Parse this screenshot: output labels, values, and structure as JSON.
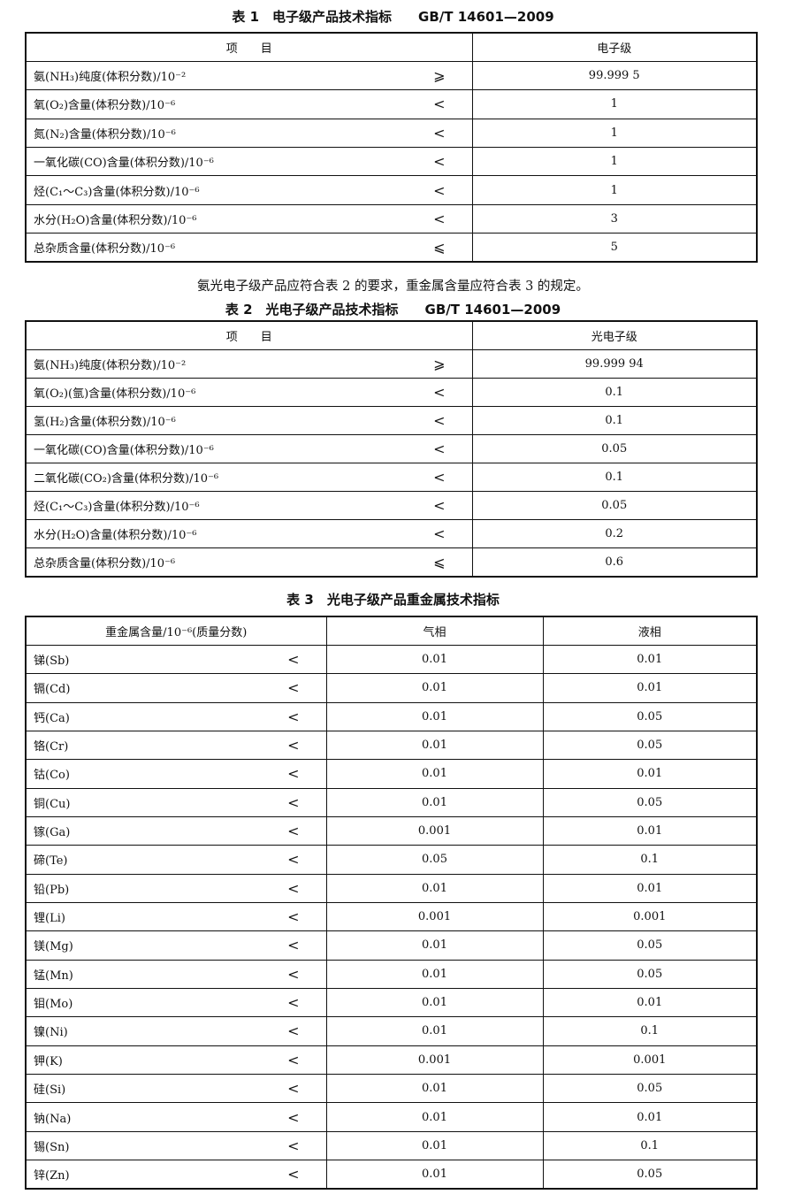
{
  "table1": {
    "caption": "表 1　电子级产品技术指标　　GB/T 14601—2009",
    "headers": [
      "项　　目",
      "电子级"
    ],
    "rows": [
      {
        "item": "氨(NH₃)纯度(体积分数)/10⁻²",
        "op": "⩾",
        "value": "99.999 5"
      },
      {
        "item": "氧(O₂)含量(体积分数)/10⁻⁶",
        "op": "<",
        "value": "1"
      },
      {
        "item": "氮(N₂)含量(体积分数)/10⁻⁶",
        "op": "<",
        "value": "1"
      },
      {
        "item": "一氧化碳(CO)含量(体积分数)/10⁻⁶",
        "op": "<",
        "value": "1"
      },
      {
        "item": "烃(C₁～C₃)含量(体积分数)/10⁻⁶",
        "op": "<",
        "value": "1"
      },
      {
        "item": "水分(H₂O)含量(体积分数)/10⁻⁶",
        "op": "<",
        "value": "3"
      },
      {
        "item": "总杂质含量(体积分数)/10⁻⁶",
        "op": "⩽",
        "value": "5"
      }
    ]
  },
  "paragraph": "氨光电子级产品应符合表 2 的要求，重金属含量应符合表 3 的规定。",
  "table2": {
    "caption": "表 2　光电子级产品技术指标　　GB/T 14601—2009",
    "headers": [
      "项　　目",
      "光电子级"
    ],
    "rows": [
      {
        "item": "氨(NH₃)纯度(体积分数)/10⁻²",
        "op": "⩾",
        "value": "99.999 94"
      },
      {
        "item": "氧(O₂)(氩)含量(体积分数)/10⁻⁶",
        "op": "<",
        "value": "0.1"
      },
      {
        "item": "氢(H₂)含量(体积分数)/10⁻⁶",
        "op": "<",
        "value": "0.1"
      },
      {
        "item": "一氧化碳(CO)含量(体积分数)/10⁻⁶",
        "op": "<",
        "value": "0.05"
      },
      {
        "item": "二氧化碳(CO₂)含量(体积分数)/10⁻⁶",
        "op": "<",
        "value": "0.1"
      },
      {
        "item": "烃(C₁～C₃)含量(体积分数)/10⁻⁶",
        "op": "<",
        "value": "0.05"
      },
      {
        "item": "水分(H₂O)含量(体积分数)/10⁻⁶",
        "op": "<",
        "value": "0.2"
      },
      {
        "item": "总杂质含量(体积分数)/10⁻⁶",
        "op": "⩽",
        "value": "0.6"
      }
    ]
  },
  "table3": {
    "caption": "表 3　光电子级产品重金属技术指标",
    "headers": [
      "重金属含量/10⁻⁶(质量分数)",
      "气相",
      "液相"
    ],
    "rows": [
      {
        "item": "锑(Sb)",
        "op": "<",
        "gas": "0.01",
        "liquid": "0.01"
      },
      {
        "item": "镉(Cd)",
        "op": "<",
        "gas": "0.01",
        "liquid": "0.01"
      },
      {
        "item": "钙(Ca)",
        "op": "<",
        "gas": "0.01",
        "liquid": "0.05"
      },
      {
        "item": "铬(Cr)",
        "op": "<",
        "gas": "0.01",
        "liquid": "0.05"
      },
      {
        "item": "钴(Co)",
        "op": "<",
        "gas": "0.01",
        "liquid": "0.01"
      },
      {
        "item": "铜(Cu)",
        "op": "<",
        "gas": "0.01",
        "liquid": "0.05"
      },
      {
        "item": "镓(Ga)",
        "op": "<",
        "gas": "0.001",
        "liquid": "0.01"
      },
      {
        "item": "碲(Te)",
        "op": "<",
        "gas": "0.05",
        "liquid": "0.1"
      },
      {
        "item": "铅(Pb)",
        "op": "<",
        "gas": "0.01",
        "liquid": "0.01"
      },
      {
        "item": "锂(Li)",
        "op": "<",
        "gas": "0.001",
        "liquid": "0.001"
      },
      {
        "item": "镁(Mg)",
        "op": "<",
        "gas": "0.01",
        "liquid": "0.05"
      },
      {
        "item": "锰(Mn)",
        "op": "<",
        "gas": "0.01",
        "liquid": "0.05"
      },
      {
        "item": "钼(Mo)",
        "op": "<",
        "gas": "0.01",
        "liquid": "0.01"
      },
      {
        "item": "镍(Ni)",
        "op": "<",
        "gas": "0.01",
        "liquid": "0.1"
      },
      {
        "item": "钾(K)",
        "op": "<",
        "gas": "0.001",
        "liquid": "0.001"
      },
      {
        "item": "硅(Si)",
        "op": "<",
        "gas": "0.01",
        "liquid": "0.05"
      },
      {
        "item": "钠(Na)",
        "op": "<",
        "gas": "0.01",
        "liquid": "0.01"
      },
      {
        "item": "锡(Sn)",
        "op": "<",
        "gas": "0.01",
        "liquid": "0.1"
      },
      {
        "item": "锌(Zn)",
        "op": "<",
        "gas": "0.01",
        "liquid": "0.05"
      }
    ]
  }
}
